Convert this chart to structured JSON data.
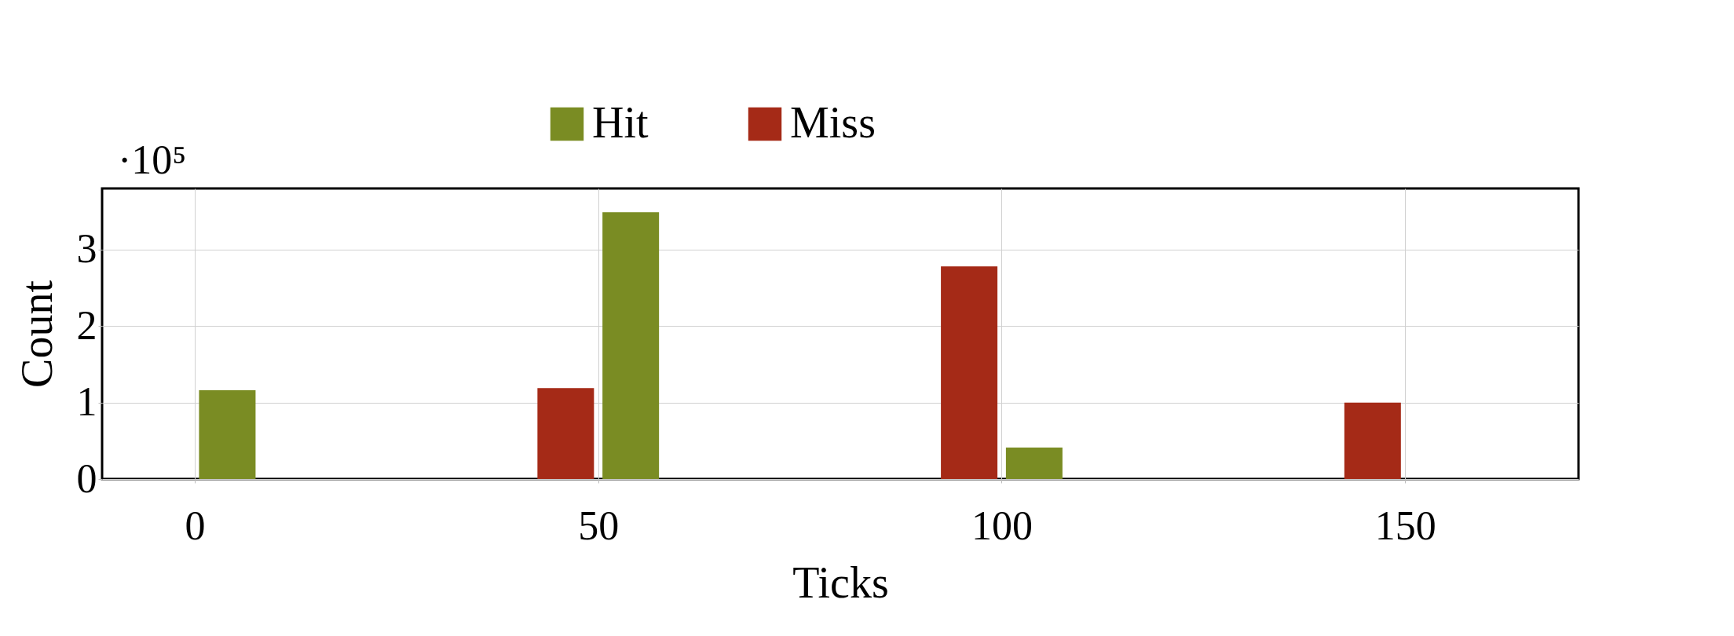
{
  "chart_data": {
    "type": "bar",
    "xlabel": "Ticks",
    "ylabel": "Count",
    "annotations": [
      "·10⁵"
    ],
    "x": [
      0,
      50,
      100,
      150
    ],
    "series": [
      {
        "name": "Hit",
        "color": "#7a8c23",
        "values": [
          1.16,
          3.49,
          0.41,
          0
        ]
      },
      {
        "name": "Miss",
        "color": "#a52a17",
        "values": [
          0,
          1.19,
          2.78,
          1.0
        ]
      }
    ],
    "xlim": [
      -11,
      171
    ],
    "xticks": [
      0,
      50,
      100,
      150
    ],
    "ylim": [
      0,
      3.8
    ],
    "yticks": [
      0,
      1,
      2,
      3
    ],
    "grid": true,
    "legend": "top"
  }
}
